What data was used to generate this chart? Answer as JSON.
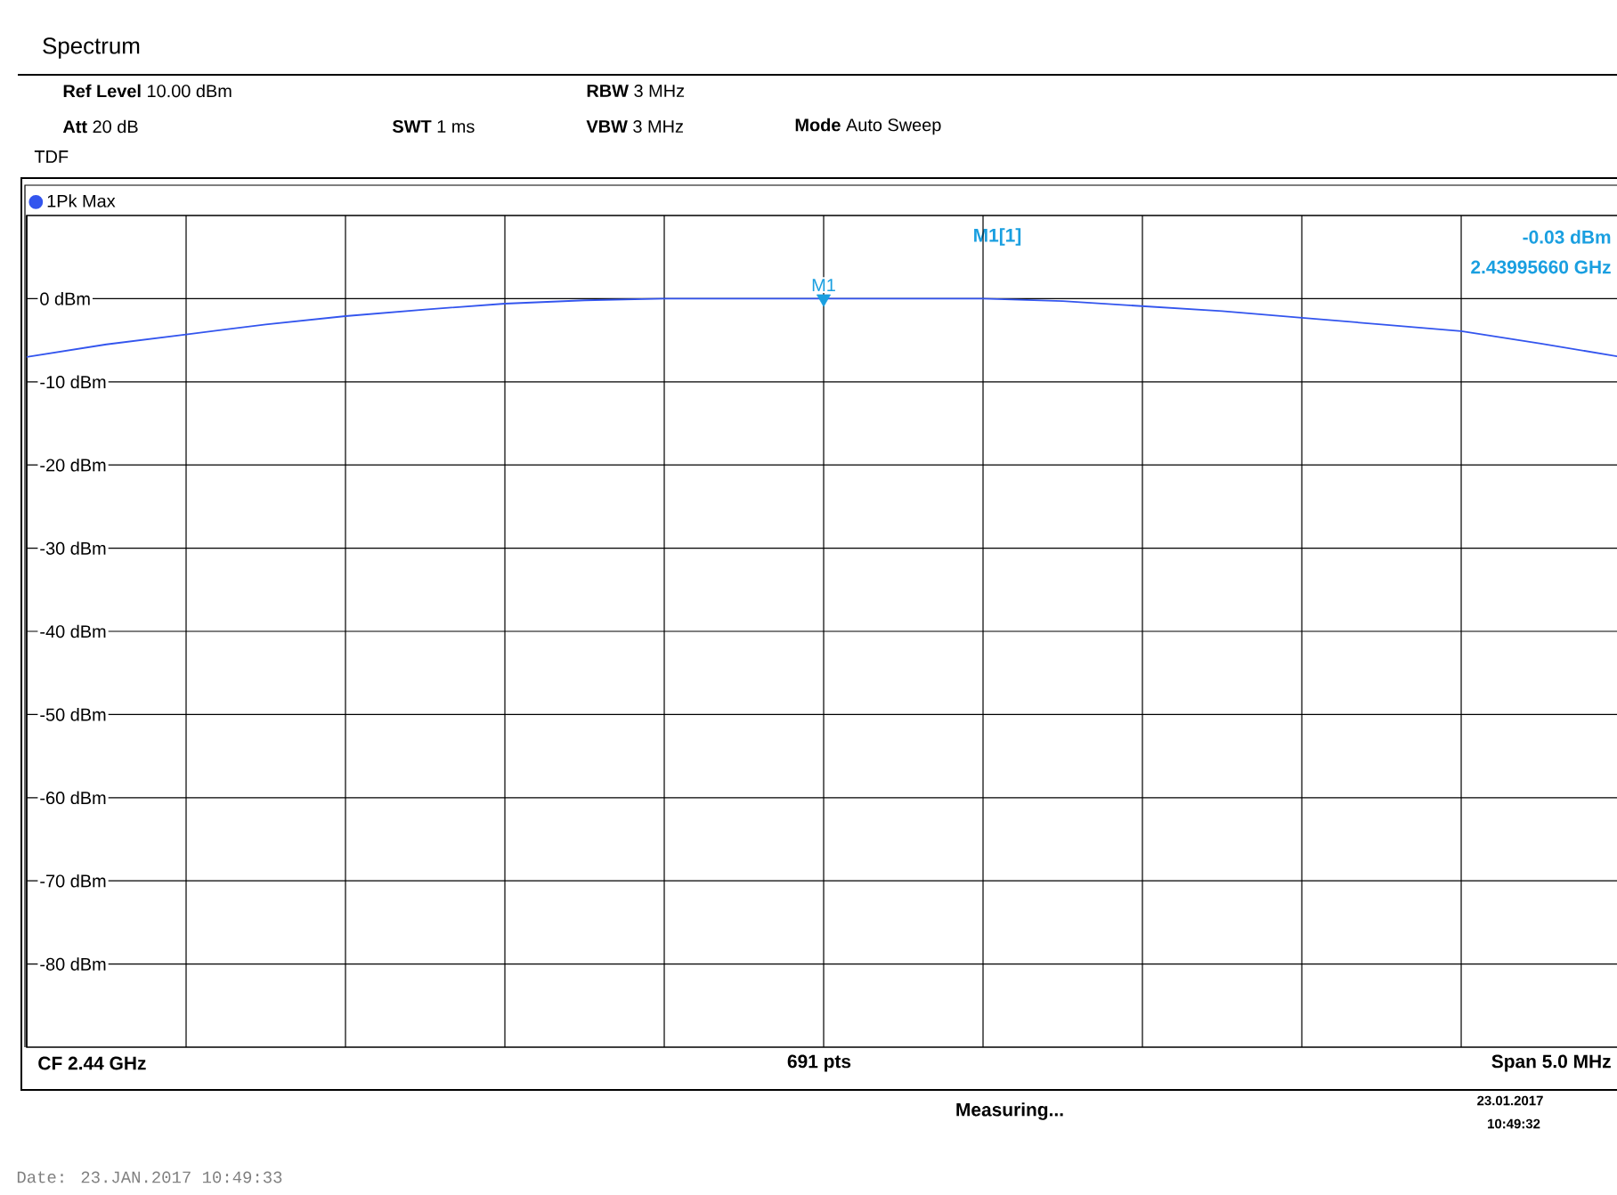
{
  "chart_data": {
    "type": "line",
    "title": "Spectrum",
    "categories": [
      null,
      null,
      null,
      null,
      null,
      null,
      null,
      null,
      null,
      null,
      null,
      null,
      null,
      null,
      null,
      null,
      null,
      null,
      null,
      null,
      null
    ],
    "series": [
      {
        "name": "1Pk Max",
        "color": "#3355ee",
        "values": [
          -7.0,
          -5.5,
          -4.3,
          -3.1,
          -2.1,
          -1.3,
          -0.6,
          -0.2,
          0,
          0,
          0,
          0,
          0,
          -0.3,
          -0.9,
          -1.5,
          -2.3,
          -3.1,
          -3.9,
          -5.4,
          -7.0
        ]
      },
      {
        "name": "M1",
        "type": "scatter",
        "color": "#1a9fe0",
        "marker": "triangle",
        "values": [
          null,
          null,
          null,
          null,
          null,
          null,
          null,
          null,
          null,
          null,
          0,
          null,
          null,
          null,
          null,
          null,
          null,
          null,
          null,
          null,
          null
        ]
      }
    ],
    "ylim": [
      -90,
      10
    ],
    "yticks": [
      {
        "value": 0,
        "label": "0 dBm"
      },
      {
        "value": -10,
        "label": "-10 dBm"
      },
      {
        "value": -20,
        "label": "-20 dBm"
      },
      {
        "value": -30,
        "label": "-30 dBm"
      },
      {
        "value": -40,
        "label": "-40 dBm"
      },
      {
        "value": -50,
        "label": "-50 dBm"
      },
      {
        "value": -60,
        "label": "-60 dBm"
      },
      {
        "value": -70,
        "label": "-70 dBm"
      },
      {
        "value": -80,
        "label": "-80 dBm"
      }
    ],
    "tick_labels": "y",
    "grid": true,
    "legend": "top left",
    "annotations": [
      "**Ref Level** 10.00 dBm",
      "**Att** 20 dB",
      "TDF",
      "**SWT** 1 ms",
      "**RBW** 3 MHz",
      "**VBW** 3 MHz",
      "**Mode** Auto Sweep",
      "M1[1]",
      "-0.03 dBm",
      "2.43995660 GHz",
      "CF 2.44 GHz",
      "691 pts",
      "Span 5.0 MHz",
      "Measuring...",
      "23.01.2017",
      "10:49:32",
      "Date: 23.JAN.2017  10:49:33"
    ]
  }
}
